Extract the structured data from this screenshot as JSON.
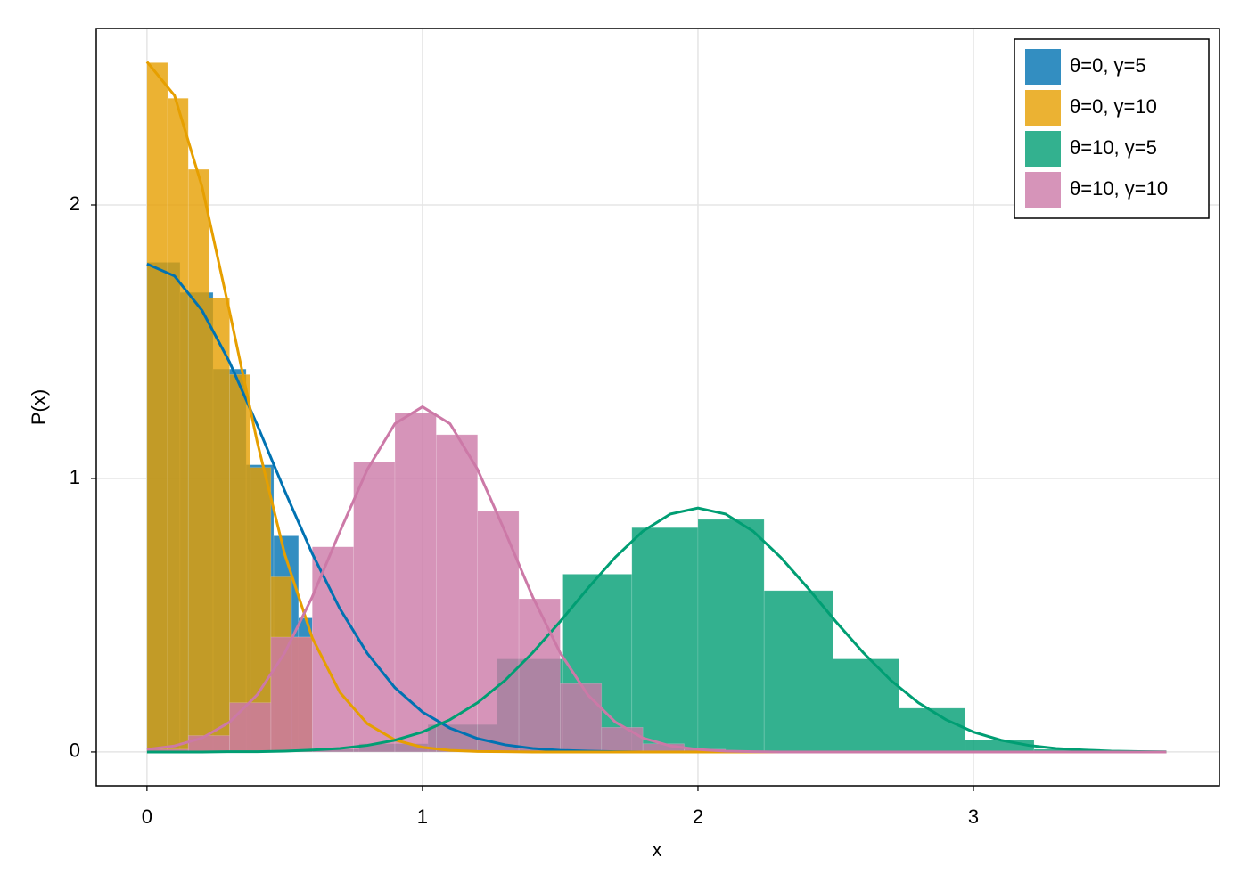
{
  "chart_data": {
    "type": "histogram",
    "xlabel": "x",
    "ylabel": "P(x)",
    "xlim": [
      -0.184,
      3.893
    ],
    "ylim": [
      -0.124,
      2.645
    ],
    "xticks": [
      0,
      1,
      2,
      3
    ],
    "yticks": [
      0,
      1,
      2
    ],
    "grid": true,
    "legend": "top-right",
    "density_x": [
      0,
      0.1,
      0.2,
      0.3,
      0.4,
      0.5,
      0.6,
      0.7,
      0.8,
      0.9,
      1.0,
      1.1,
      1.2,
      1.3,
      1.4,
      1.5,
      1.6,
      1.7,
      1.8,
      1.9,
      2.0,
      2.1,
      2.2,
      2.3,
      2.4,
      2.5,
      2.6,
      2.7,
      2.8,
      2.9,
      3.0,
      3.1,
      3.2,
      3.3,
      3.4,
      3.5,
      3.6,
      3.7
    ],
    "series": [
      {
        "name": "θ=0, γ=5",
        "color": "#0072b2",
        "bins": [
          0,
          0.12,
          0.24,
          0.36,
          0.46,
          0.55,
          0.6
        ],
        "values": [
          1.79,
          1.68,
          1.4,
          1.05,
          0.79,
          0.49
        ],
        "density": [
          1.784,
          1.74,
          1.614,
          1.425,
          1.196,
          0.955,
          0.725,
          0.524,
          0.36,
          0.235,
          0.146,
          0.087,
          0.049,
          0.026,
          0.013,
          0.006,
          0.003,
          0.001,
          0,
          0,
          0,
          0,
          0,
          0,
          0,
          0,
          0,
          0,
          0,
          0,
          0,
          0,
          0,
          0,
          0,
          0,
          0,
          0
        ]
      },
      {
        "name": "θ=0, γ=10",
        "color": "#e69f00",
        "bins": [
          0,
          0.075,
          0.15,
          0.225,
          0.3,
          0.375,
          0.45,
          0.525,
          0.6
        ],
        "values": [
          2.52,
          2.39,
          2.13,
          1.66,
          1.38,
          1.04,
          0.64,
          0.42
        ],
        "density": [
          2.523,
          2.4,
          2.066,
          1.609,
          1.134,
          0.723,
          0.417,
          0.218,
          0.103,
          0.044,
          0.017,
          0.006,
          0.002,
          0.001,
          0,
          0,
          0,
          0,
          0,
          0,
          0,
          0,
          0,
          0,
          0,
          0,
          0,
          0,
          0,
          0,
          0,
          0,
          0,
          0,
          0,
          0,
          0,
          0
        ]
      },
      {
        "name": "θ=10, γ=5",
        "color": "#009e73",
        "bins": [
          0.53,
          0.77,
          1.02,
          1.27,
          1.51,
          1.76,
          2.0,
          2.24,
          2.49,
          2.73,
          2.97,
          3.22,
          3.46,
          3.7
        ],
        "values": [
          0.01,
          0.03,
          0.1,
          0.34,
          0.65,
          0.82,
          0.85,
          0.59,
          0.34,
          0.16,
          0.045,
          0.01,
          0.003
        ],
        "density": [
          0,
          0,
          0,
          0.001,
          0.001,
          0.003,
          0.007,
          0.013,
          0.024,
          0.043,
          0.073,
          0.118,
          0.18,
          0.262,
          0.363,
          0.477,
          0.598,
          0.712,
          0.807,
          0.87,
          0.892,
          0.87,
          0.807,
          0.712,
          0.598,
          0.477,
          0.363,
          0.262,
          0.18,
          0.118,
          0.073,
          0.043,
          0.024,
          0.013,
          0.007,
          0.003,
          0.0015,
          0.0007
        ]
      },
      {
        "name": "θ=10, γ=10",
        "color": "#cc79a7",
        "bins": [
          0,
          0.15,
          0.3,
          0.45,
          0.6,
          0.75,
          0.9,
          1.05,
          1.2,
          1.35,
          1.5,
          1.65,
          1.8,
          1.95,
          2.1
        ],
        "values": [
          0.01,
          0.06,
          0.18,
          0.42,
          0.75,
          1.06,
          1.24,
          1.16,
          0.88,
          0.56,
          0.25,
          0.09,
          0.03,
          0.01
        ],
        "density": [
          0.009,
          0.022,
          0.051,
          0.109,
          0.209,
          0.362,
          0.567,
          0.805,
          1.033,
          1.2,
          1.262,
          1.2,
          1.033,
          0.805,
          0.567,
          0.362,
          0.209,
          0.109,
          0.051,
          0.022,
          0.009,
          0.003,
          0.001,
          0,
          0,
          0,
          0,
          0,
          0,
          0,
          0,
          0,
          0,
          0,
          0,
          0,
          0,
          0
        ]
      }
    ]
  }
}
